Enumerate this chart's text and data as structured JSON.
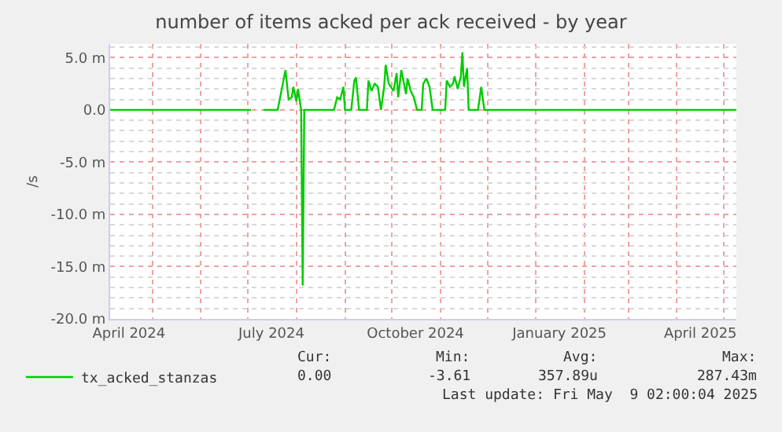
{
  "chart_data": {
    "type": "line",
    "title": "number of items acked per ack received - by year",
    "ylabel": "/s",
    "x": [
      "2024-04-04",
      "2024-07-03",
      "2024-07-06",
      "2024-07-11",
      "2024-07-20",
      "2024-07-22",
      "2024-07-25",
      "2024-07-27",
      "2024-07-29",
      "2024-07-30",
      "2024-08-01",
      "2024-08-02",
      "2024-08-04",
      "2024-08-05",
      "2024-08-06",
      "2024-08-25",
      "2024-08-27",
      "2024-08-29",
      "2024-08-31",
      "2024-09-01",
      "2024-09-05",
      "2024-09-07",
      "2024-09-08",
      "2024-09-10",
      "2024-09-15",
      "2024-09-16",
      "2024-09-18",
      "2024-09-20",
      "2024-09-22",
      "2024-09-24",
      "2024-09-26",
      "2024-09-27",
      "2024-09-29",
      "2024-10-02",
      "2024-10-04",
      "2024-10-05",
      "2024-10-07",
      "2024-10-10",
      "2024-10-11",
      "2024-10-13",
      "2024-10-15",
      "2024-10-17",
      "2024-10-20",
      "2024-10-21",
      "2024-10-23",
      "2024-10-25",
      "2024-10-27",
      "2024-11-04",
      "2024-11-05",
      "2024-11-07",
      "2024-11-09",
      "2024-11-10",
      "2024-11-12",
      "2024-11-14",
      "2024-11-15",
      "2024-11-16",
      "2024-11-18",
      "2024-11-19",
      "2024-11-25",
      "2024-11-27",
      "2024-11-29",
      "2025-05-09"
    ],
    "series": [
      {
        "name": "tx_acked_stanzas",
        "color": "#00cc00",
        "values": [
          0,
          0,
          null,
          0,
          0,
          1.5,
          3.8,
          1.0,
          1.2,
          2.2,
          0.8,
          2.0,
          0,
          -16.8,
          0,
          0,
          1.2,
          1.0,
          2.2,
          0,
          0,
          2.8,
          3.1,
          0,
          0,
          2.8,
          1.8,
          2.5,
          2.2,
          0,
          2.2,
          4.3,
          2.5,
          1.8,
          3.5,
          1.2,
          3.8,
          1.5,
          3.0,
          1.8,
          1.2,
          0,
          0,
          2.5,
          3.0,
          2.2,
          0,
          0,
          2.8,
          2.2,
          2.5,
          3.2,
          2.0,
          3.2,
          5.5,
          2.2,
          4.0,
          0,
          0,
          2.2,
          0,
          0
        ]
      }
    ],
    "xlim": [
      "2024-04-04",
      "2025-05-09"
    ],
    "xticks": [
      {
        "value": "2024-04-16",
        "label": "April 2024"
      },
      {
        "value": "2024-07-16",
        "label": "July 2024"
      },
      {
        "value": "2024-10-16",
        "label": "October 2024"
      },
      {
        "value": "2025-01-16",
        "label": "January 2025"
      },
      {
        "value": "2025-04-16",
        "label": "April 2025"
      }
    ],
    "ylim": [
      -20,
      6.3
    ],
    "yticks": [
      {
        "value": 5,
        "label": "5.0 m"
      },
      {
        "value": 0,
        "label": "0.0"
      },
      {
        "value": -5,
        "label": "-5.0 m"
      },
      {
        "value": -10,
        "label": "-10.0 m"
      },
      {
        "value": -15,
        "label": "-15.0 m"
      },
      {
        "value": -20,
        "label": "-20.0 m"
      }
    ],
    "grid": true,
    "legend": "bottom left",
    "annotations": [
      "Cur:",
      "Min:",
      "Avg:",
      "Max:",
      "0.00",
      "-3.61",
      "357.89u",
      "287.43m",
      "Last update: Fri May  9 02:00:04 2025"
    ]
  }
}
